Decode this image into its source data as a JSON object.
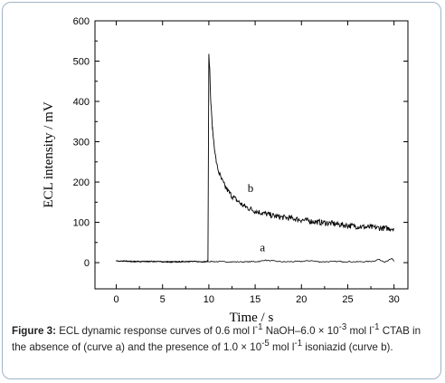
{
  "chart_data": {
    "type": "line",
    "xlabel": "Time / s",
    "ylabel": "ECL intensity / mV",
    "xlim": [
      -2.3,
      31.5
    ],
    "ylim": [
      -65,
      600
    ],
    "x_ticks": [
      0,
      5,
      10,
      15,
      20,
      25,
      30
    ],
    "y_ticks": [
      0,
      100,
      200,
      300,
      400,
      500,
      600
    ],
    "grid": false,
    "series": [
      {
        "name": "a",
        "x": [
          0,
          2,
          4,
          6,
          8,
          9.5,
          9.9,
          12,
          14,
          15.5,
          16,
          18,
          20,
          21,
          22,
          24,
          26,
          27.5,
          28,
          28.3,
          29,
          29.8,
          30
        ],
        "y": [
          4,
          2,
          3,
          1,
          3,
          2,
          3,
          2,
          2,
          3,
          6,
          2,
          3,
          5,
          2,
          3,
          2,
          3,
          5,
          8,
          2,
          10,
          3
        ]
      },
      {
        "name": "b",
        "x": [
          0,
          2,
          4,
          6,
          8,
          9.5,
          9.9,
          10.0,
          10.1,
          10.2,
          10.4,
          10.6,
          10.8,
          11.0,
          11.3,
          11.6,
          12.0,
          12.5,
          13.0,
          13.5,
          14.0,
          15.0,
          16.0,
          17.0,
          18.0,
          19.0,
          20.0,
          21.0,
          22.0,
          23.0,
          24.0,
          25.0,
          26.0,
          27.0,
          28.0,
          29.0,
          30.0
        ],
        "y": [
          4,
          3,
          3,
          2,
          3,
          2,
          5,
          515,
          480,
          400,
          330,
          285,
          250,
          230,
          210,
          195,
          180,
          165,
          155,
          145,
          138,
          128,
          122,
          116,
          112,
          110,
          106,
          103,
          100,
          98,
          95,
          92,
          90,
          88,
          87,
          85,
          85
        ]
      }
    ],
    "annotations": [
      {
        "text": "a",
        "x": 15.8,
        "y": 28
      },
      {
        "text": "b",
        "x": 14.5,
        "y": 175
      }
    ]
  },
  "caption": {
    "label": "Figure 3:",
    "t1": " ECL dynamic response curves of 0.6 mol l",
    "s1": "-1",
    "t2": " NaOH–6.0 × 10",
    "s2": "-3",
    "t3": " mol l",
    "s3": "-1",
    "t4": " CTAB in the absence of (curve a) and the presence of 1.0 × 10",
    "s4": "-5",
    "t5": " mol l",
    "s5": "-1",
    "t6": " isoniazid (curve b)."
  }
}
